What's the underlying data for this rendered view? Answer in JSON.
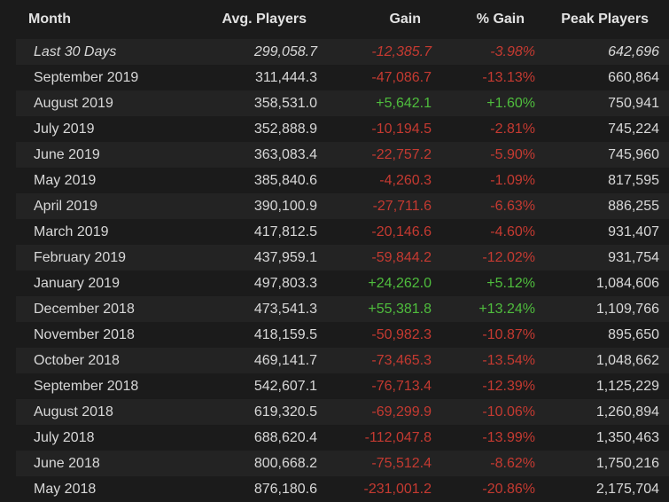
{
  "headers": {
    "month": "Month",
    "avg": "Avg. Players",
    "gain": "Gain",
    "pct": "% Gain",
    "peak": "Peak Players"
  },
  "colors": {
    "negative": "#c53a31",
    "positive": "#4fbd3d",
    "row_alt": "#232323",
    "background": "#1b1b1b"
  },
  "rows": [
    {
      "month": "Last 30 Days",
      "avg": "299,058.7",
      "gain": "-12,385.7",
      "pct": "-3.98%",
      "peak": "642,696"
    },
    {
      "month": "September 2019",
      "avg": "311,444.3",
      "gain": "-47,086.7",
      "pct": "-13.13%",
      "peak": "660,864"
    },
    {
      "month": "August 2019",
      "avg": "358,531.0",
      "gain": "+5,642.1",
      "pct": "+1.60%",
      "peak": "750,941"
    },
    {
      "month": "July 2019",
      "avg": "352,888.9",
      "gain": "-10,194.5",
      "pct": "-2.81%",
      "peak": "745,224"
    },
    {
      "month": "June 2019",
      "avg": "363,083.4",
      "gain": "-22,757.2",
      "pct": "-5.90%",
      "peak": "745,960"
    },
    {
      "month": "May 2019",
      "avg": "385,840.6",
      "gain": "-4,260.3",
      "pct": "-1.09%",
      "peak": "817,595"
    },
    {
      "month": "April 2019",
      "avg": "390,100.9",
      "gain": "-27,711.6",
      "pct": "-6.63%",
      "peak": "886,255"
    },
    {
      "month": "March 2019",
      "avg": "417,812.5",
      "gain": "-20,146.6",
      "pct": "-4.60%",
      "peak": "931,407"
    },
    {
      "month": "February 2019",
      "avg": "437,959.1",
      "gain": "-59,844.2",
      "pct": "-12.02%",
      "peak": "931,754"
    },
    {
      "month": "January 2019",
      "avg": "497,803.3",
      "gain": "+24,262.0",
      "pct": "+5.12%",
      "peak": "1,084,606"
    },
    {
      "month": "December 2018",
      "avg": "473,541.3",
      "gain": "+55,381.8",
      "pct": "+13.24%",
      "peak": "1,109,766"
    },
    {
      "month": "November 2018",
      "avg": "418,159.5",
      "gain": "-50,982.3",
      "pct": "-10.87%",
      "peak": "895,650"
    },
    {
      "month": "October 2018",
      "avg": "469,141.7",
      "gain": "-73,465.3",
      "pct": "-13.54%",
      "peak": "1,048,662"
    },
    {
      "month": "September 2018",
      "avg": "542,607.1",
      "gain": "-76,713.4",
      "pct": "-12.39%",
      "peak": "1,125,229"
    },
    {
      "month": "August 2018",
      "avg": "619,320.5",
      "gain": "-69,299.9",
      "pct": "-10.06%",
      "peak": "1,260,894"
    },
    {
      "month": "July 2018",
      "avg": "688,620.4",
      "gain": "-112,047.8",
      "pct": "-13.99%",
      "peak": "1,350,463"
    },
    {
      "month": "June 2018",
      "avg": "800,668.2",
      "gain": "-75,512.4",
      "pct": "-8.62%",
      "peak": "1,750,216"
    },
    {
      "month": "May 2018",
      "avg": "876,180.6",
      "gain": "-231,001.2",
      "pct": "-20.86%",
      "peak": "2,175,704"
    }
  ]
}
